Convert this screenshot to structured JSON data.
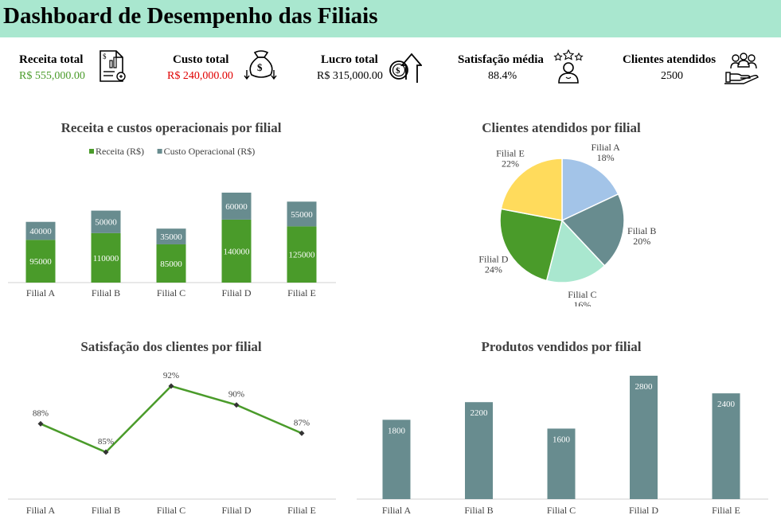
{
  "header": {
    "title": "Dashboard de Desempenho das Filiais"
  },
  "kpis": [
    {
      "label": "Receita total",
      "value": "R$ 555,000.00",
      "color": "#4a9b2a",
      "icon": "invoice-chart-icon"
    },
    {
      "label": "Custo total",
      "value": "R$ 240,000.00",
      "color": "#e00000",
      "icon": "money-bag-icon"
    },
    {
      "label": "Lucro total",
      "value": "R$ 315,000.00",
      "color": "#000000",
      "icon": "profit-arrow-icon"
    },
    {
      "label": "Satisfação média",
      "value": "88.4%",
      "color": "#000000",
      "icon": "user-rating-icon"
    },
    {
      "label": "Clientes atendidos",
      "value": "2500",
      "color": "#000000",
      "icon": "customers-hand-icon"
    }
  ],
  "chart_data": [
    {
      "type": "bar",
      "stacked": true,
      "title": "Receita e custos operacionais por filial",
      "categories": [
        "Filial A",
        "Filial B",
        "Filial C",
        "Filial D",
        "Filial E"
      ],
      "series": [
        {
          "name": "Receita (R$)",
          "values": [
            95000,
            110000,
            85000,
            140000,
            125000
          ],
          "color": "#4a9b2a"
        },
        {
          "name": "Custo Operacional (R$)",
          "values": [
            40000,
            50000,
            35000,
            60000,
            55000
          ],
          "color": "#688c8f"
        }
      ],
      "legend": "top"
    },
    {
      "type": "pie",
      "title": "Clientes atendidos por filial",
      "categories": [
        "Filial A",
        "Filial B",
        "Filial C",
        "Filial D",
        "Filial E"
      ],
      "values": [
        18,
        20,
        16,
        24,
        22
      ],
      "labels": [
        "18%",
        "20%",
        "16%",
        "24%",
        "22%"
      ],
      "colors": [
        "#a3c4e8",
        "#688c8f",
        "#a9e7cf",
        "#4a9b2a",
        "#ffdb5c"
      ]
    },
    {
      "type": "line",
      "title": "Satisfação dos clientes por filial",
      "categories": [
        "Filial A",
        "Filial B",
        "Filial C",
        "Filial D",
        "Filial E"
      ],
      "values": [
        88,
        85,
        92,
        90,
        87
      ],
      "labels": [
        "88%",
        "85%",
        "92%",
        "90%",
        "87%"
      ],
      "color": "#4a9b2a"
    },
    {
      "type": "bar",
      "title": "Produtos vendidos por filial",
      "categories": [
        "Filial A",
        "Filial B",
        "Filial C",
        "Filial D",
        "Filial E"
      ],
      "values": [
        1800,
        2200,
        1600,
        2800,
        2400
      ],
      "color": "#688c8f"
    }
  ]
}
